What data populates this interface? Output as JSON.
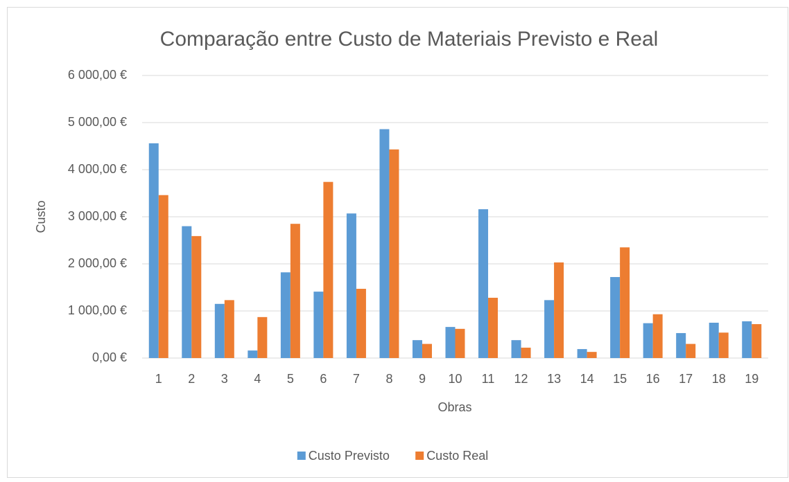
{
  "chart_data": {
    "type": "bar",
    "title": "Comparação entre Custo de Materiais Previsto e Real",
    "x_label": "Obras",
    "y_label": "Custo",
    "categories": [
      "1",
      "2",
      "3",
      "4",
      "5",
      "6",
      "7",
      "8",
      "9",
      "10",
      "11",
      "12",
      "13",
      "14",
      "15",
      "16",
      "17",
      "18",
      "19"
    ],
    "series": [
      {
        "name": "Custo Previsto",
        "color": "#5b9bd5",
        "values": [
          4560,
          2800,
          1150,
          160,
          1820,
          1410,
          3070,
          4860,
          380,
          660,
          3160,
          380,
          1230,
          190,
          1720,
          740,
          530,
          750,
          780
        ]
      },
      {
        "name": "Custo Real",
        "color": "#ed7d31",
        "values": [
          3460,
          2590,
          1230,
          870,
          2850,
          3740,
          1470,
          4430,
          300,
          620,
          1280,
          220,
          2030,
          130,
          2350,
          930,
          300,
          540,
          720
        ]
      }
    ],
    "ylim": [
      0,
      6000
    ],
    "yticks": [
      {
        "value": 0,
        "label": "0,00 €"
      },
      {
        "value": 1000,
        "label": "1 000,00 €"
      },
      {
        "value": 2000,
        "label": "2 000,00 €"
      },
      {
        "value": 3000,
        "label": "3 000,00 €"
      },
      {
        "value": 4000,
        "label": "4 000,00 €"
      },
      {
        "value": 5000,
        "label": "5 000,00 €"
      },
      {
        "value": 6000,
        "label": "6 000,00 €"
      }
    ],
    "grid": true,
    "legend": "bottom"
  }
}
